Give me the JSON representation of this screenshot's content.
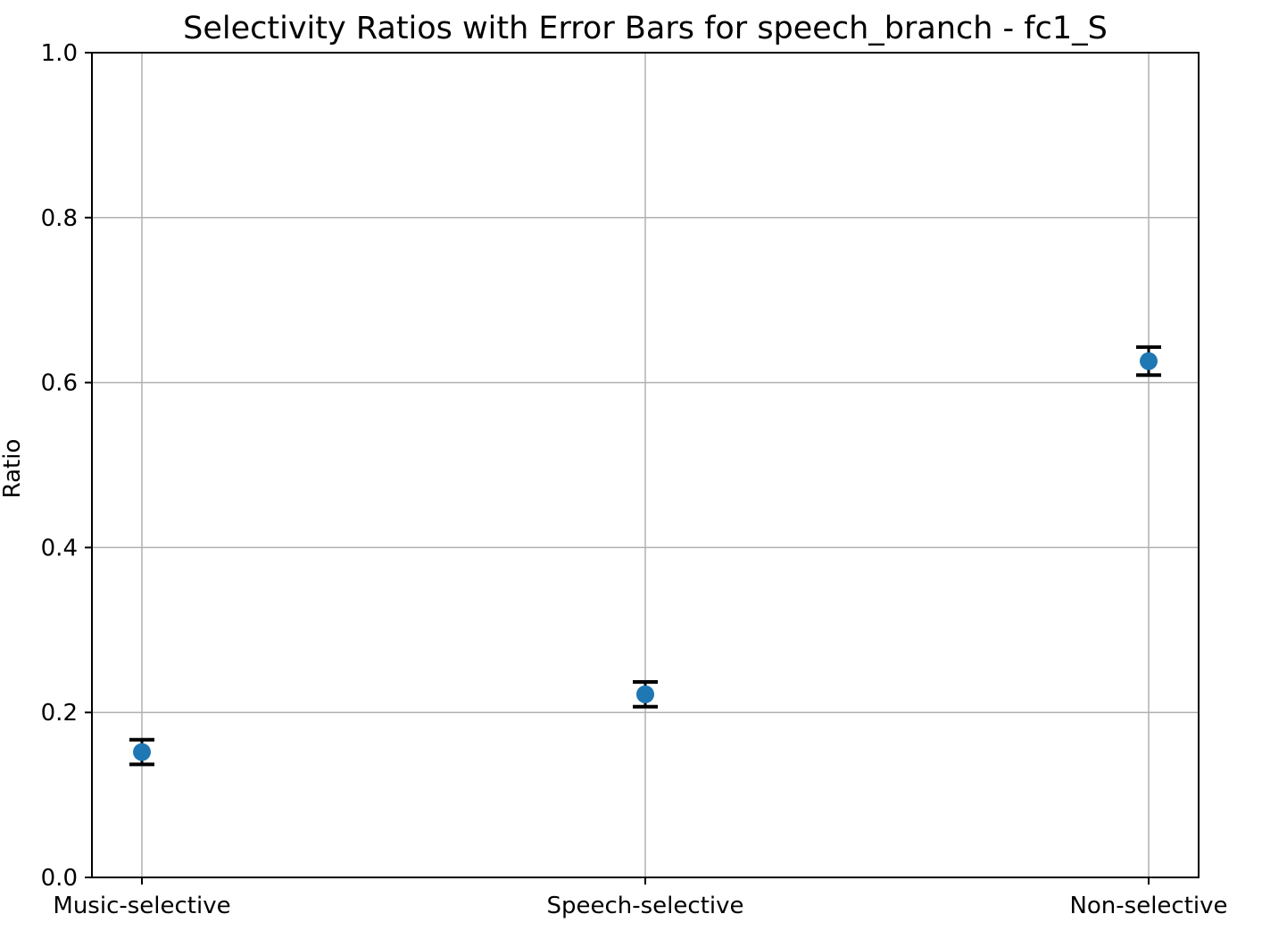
{
  "chart_data": {
    "type": "scatter",
    "title": "Selectivity Ratios with Error Bars for speech_branch - fc1_S",
    "xlabel": "",
    "ylabel": "Ratio",
    "categories": [
      "Music-selective",
      "Speech-selective",
      "Non-selective"
    ],
    "values": [
      0.152,
      0.222,
      0.626
    ],
    "errors": [
      0.015,
      0.015,
      0.017
    ],
    "ylim": [
      0,
      1.0
    ],
    "yticks": [
      "0.0",
      "0.2",
      "0.4",
      "0.6",
      "0.8",
      "1.0"
    ],
    "grid": true,
    "marker_color": "#1f77b4",
    "error_color": "#000000"
  }
}
